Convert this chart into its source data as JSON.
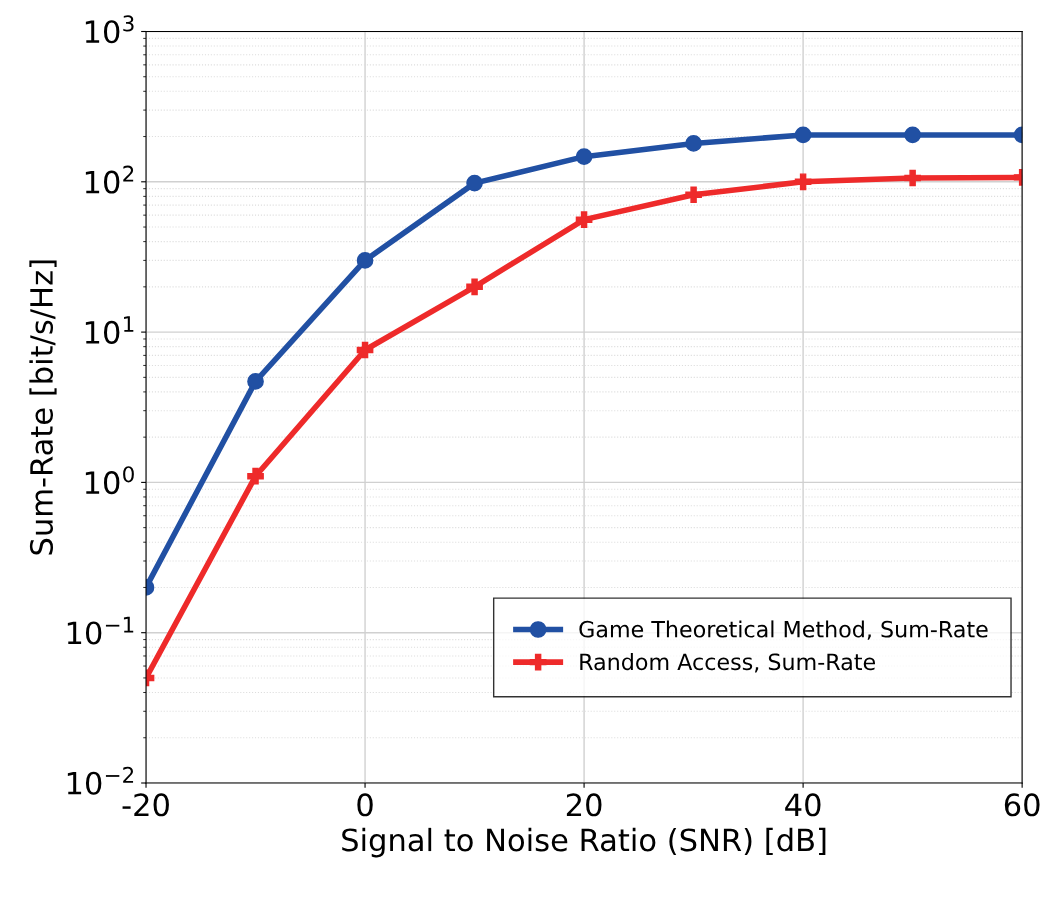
{
  "chart_data": {
    "type": "line",
    "xlabel": "Signal to Noise Ratio (SNR) [dB]",
    "ylabel": "Sum-Rate [bit/s/Hz]",
    "x": [
      -20,
      -10,
      0,
      10,
      20,
      30,
      40,
      50,
      60
    ],
    "series": [
      {
        "name": "Game Theoretical Method, Sum-Rate",
        "color": "#2150a3",
        "marker": "circle",
        "values": [
          0.2,
          4.7,
          30,
          98,
          147,
          180,
          205,
          205,
          205
        ]
      },
      {
        "name": "Random Access, Sum-Rate",
        "color": "#ee2a2a",
        "marker": "cross",
        "values": [
          0.05,
          1.1,
          7.6,
          20,
          56,
          82,
          100,
          106,
          107
        ]
      }
    ],
    "log": "y",
    "xlim": [
      -20,
      60
    ],
    "xticks": [
      -20,
      0,
      20,
      40,
      60
    ],
    "ylim": [
      0.01,
      1000
    ],
    "yticks": [
      {
        "value": 0.01,
        "label": "10$^{−2}$"
      },
      {
        "value": 0.1,
        "label": "10$^{−1}$"
      },
      {
        "value": 1,
        "label": "10$^{0}$"
      },
      {
        "value": 10,
        "label": "10$^{1}$"
      },
      {
        "value": 100,
        "label": "10$^{2}$"
      },
      {
        "value": 1000,
        "label": "10$^{3}$"
      }
    ],
    "grid": true,
    "legend": "bottom right",
    "line_style": "solid"
  }
}
